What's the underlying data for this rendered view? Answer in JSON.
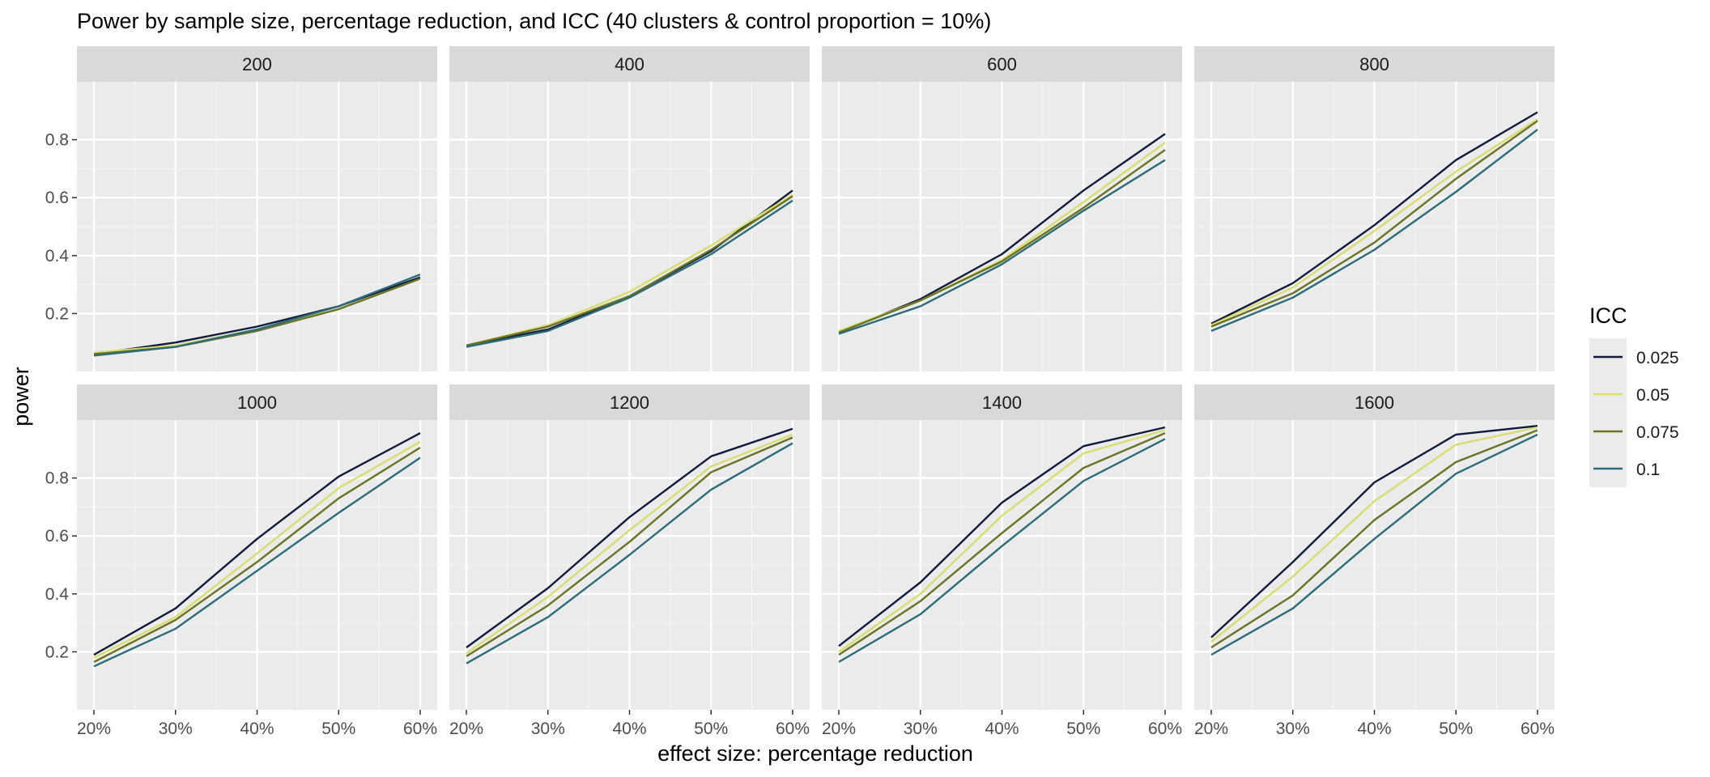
{
  "chart_data": {
    "type": "line",
    "title": "Power by sample size, percentage reduction, and ICC (40 clusters & control proportion = 10%)",
    "xlabel": "effect size: percentage reduction",
    "ylabel": "power",
    "x": [
      "20%",
      "30%",
      "40%",
      "50%",
      "60%"
    ],
    "yticks": [
      "0.2",
      "0.4",
      "0.6",
      "0.8"
    ],
    "ylim": [
      0.0,
      1.0
    ],
    "grid": true,
    "legend": {
      "title": "ICC",
      "placement": "right",
      "entries": [
        "0.025",
        "0.05",
        "0.075",
        "0.1"
      ],
      "colors": [
        "#0e1b3d",
        "#d9dc70",
        "#6b7224",
        "#2c6b7a"
      ]
    },
    "panels": [
      {
        "label": "200",
        "series": [
          {
            "name": "0.025",
            "values": [
              0.06,
              0.1,
              0.155,
              0.225,
              0.325
            ]
          },
          {
            "name": "0.05",
            "values": [
              0.065,
              0.09,
              0.145,
              0.215,
              0.32
            ]
          },
          {
            "name": "0.075",
            "values": [
              0.06,
              0.085,
              0.14,
              0.215,
              0.32
            ]
          },
          {
            "name": "0.1",
            "values": [
              0.055,
              0.085,
              0.145,
              0.225,
              0.335
            ]
          }
        ]
      },
      {
        "label": "400",
        "series": [
          {
            "name": "0.025",
            "values": [
              0.09,
              0.145,
              0.26,
              0.415,
              0.625
            ]
          },
          {
            "name": "0.05",
            "values": [
              0.09,
              0.16,
              0.275,
              0.435,
              0.61
            ]
          },
          {
            "name": "0.075",
            "values": [
              0.09,
              0.155,
              0.26,
              0.42,
              0.605
            ]
          },
          {
            "name": "0.1",
            "values": [
              0.085,
              0.14,
              0.255,
              0.405,
              0.59
            ]
          }
        ]
      },
      {
        "label": "600",
        "series": [
          {
            "name": "0.025",
            "values": [
              0.135,
              0.25,
              0.405,
              0.625,
              0.82
            ]
          },
          {
            "name": "0.05",
            "values": [
              0.14,
              0.245,
              0.385,
              0.585,
              0.79
            ]
          },
          {
            "name": "0.075",
            "values": [
              0.135,
              0.245,
              0.38,
              0.565,
              0.765
            ]
          },
          {
            "name": "0.1",
            "values": [
              0.13,
              0.225,
              0.37,
              0.555,
              0.73
            ]
          }
        ]
      },
      {
        "label": "800",
        "series": [
          {
            "name": "0.025",
            "values": [
              0.165,
              0.305,
              0.505,
              0.73,
              0.895
            ]
          },
          {
            "name": "0.05",
            "values": [
              0.16,
              0.29,
              0.485,
              0.69,
              0.87
            ]
          },
          {
            "name": "0.075",
            "values": [
              0.155,
              0.27,
              0.445,
              0.665,
              0.865
            ]
          },
          {
            "name": "0.1",
            "values": [
              0.14,
              0.255,
              0.42,
              0.62,
              0.835
            ]
          }
        ]
      },
      {
        "label": "1000",
        "series": [
          {
            "name": "0.025",
            "values": [
              0.19,
              0.35,
              0.59,
              0.805,
              0.955
            ]
          },
          {
            "name": "0.05",
            "values": [
              0.18,
              0.32,
              0.54,
              0.765,
              0.925
            ]
          },
          {
            "name": "0.075",
            "values": [
              0.165,
              0.31,
              0.51,
              0.73,
              0.905
            ]
          },
          {
            "name": "0.1",
            "values": [
              0.15,
              0.28,
              0.48,
              0.68,
              0.87
            ]
          }
        ]
      },
      {
        "label": "1200",
        "series": [
          {
            "name": "0.025",
            "values": [
              0.215,
              0.42,
              0.665,
              0.875,
              0.97
            ]
          },
          {
            "name": "0.05",
            "values": [
              0.195,
              0.39,
              0.62,
              0.84,
              0.95
            ]
          },
          {
            "name": "0.075",
            "values": [
              0.185,
              0.36,
              0.58,
              0.82,
              0.94
            ]
          },
          {
            "name": "0.1",
            "values": [
              0.16,
              0.32,
              0.535,
              0.76,
              0.92
            ]
          }
        ]
      },
      {
        "label": "1400",
        "series": [
          {
            "name": "0.025",
            "values": [
              0.22,
              0.44,
              0.715,
              0.91,
              0.975
            ]
          },
          {
            "name": "0.05",
            "values": [
              0.2,
              0.4,
              0.67,
              0.885,
              0.965
            ]
          },
          {
            "name": "0.075",
            "values": [
              0.19,
              0.375,
              0.61,
              0.835,
              0.955
            ]
          },
          {
            "name": "0.1",
            "values": [
              0.165,
              0.33,
              0.565,
              0.79,
              0.935
            ]
          }
        ]
      },
      {
        "label": "1600",
        "series": [
          {
            "name": "0.025",
            "values": [
              0.25,
              0.51,
              0.785,
              0.95,
              0.98
            ]
          },
          {
            "name": "0.05",
            "values": [
              0.235,
              0.46,
              0.72,
              0.915,
              0.975
            ]
          },
          {
            "name": "0.075",
            "values": [
              0.215,
              0.395,
              0.655,
              0.855,
              0.965
            ]
          },
          {
            "name": "0.1",
            "values": [
              0.19,
              0.35,
              0.59,
              0.815,
              0.95
            ]
          }
        ]
      }
    ]
  }
}
